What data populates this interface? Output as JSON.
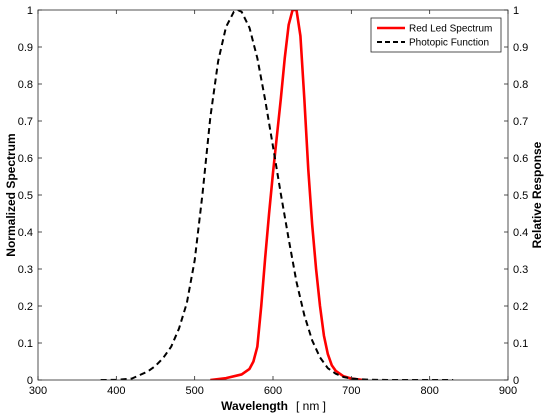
{
  "chart_data": {
    "type": "line",
    "xlabel": "Wavelength",
    "xunit": "[ nm ]",
    "ylabel_left": "Normalized Spectrum",
    "ylabel_right": "Relative Response",
    "xlim": [
      300,
      900
    ],
    "ylim": [
      0,
      1
    ],
    "ylim_right": [
      0,
      1
    ],
    "xticks": [
      "300",
      "400",
      "500",
      "600",
      "700",
      "800",
      "900"
    ],
    "yticks": [
      "0",
      "0.1",
      "0.2",
      "0.3",
      "0.4",
      "0.5",
      "0.6",
      "0.7",
      "0.8",
      "0.9",
      "1"
    ],
    "yticks_right": [
      "0",
      "0.1",
      "0.2",
      "0.3",
      "0.4",
      "0.5",
      "0.6",
      "0.7",
      "0.8",
      "0.9",
      "1"
    ],
    "grid": false,
    "legend_position": "top-right",
    "series": [
      {
        "name": "Red Led Spectrum",
        "color": "#ff0000",
        "style": "solid",
        "x": [
          520,
          540,
          560,
          570,
          575,
          580,
          585,
          590,
          595,
          600,
          605,
          610,
          615,
          620,
          625,
          630,
          635,
          640,
          645,
          650,
          655,
          660,
          665,
          670,
          675,
          680,
          690,
          700,
          715
        ],
        "y": [
          0,
          0.005,
          0.015,
          0.03,
          0.05,
          0.09,
          0.2,
          0.33,
          0.45,
          0.56,
          0.66,
          0.76,
          0.87,
          0.96,
          1.0,
          1.0,
          0.93,
          0.76,
          0.57,
          0.42,
          0.3,
          0.2,
          0.12,
          0.07,
          0.04,
          0.025,
          0.01,
          0.004,
          0
        ]
      },
      {
        "name": "Photopic Function",
        "color": "#000000",
        "style": "dashed",
        "x": [
          380,
          400,
          420,
          440,
          450,
          460,
          470,
          480,
          490,
          500,
          510,
          520,
          530,
          540,
          550,
          555,
          560,
          570,
          580,
          590,
          600,
          610,
          620,
          630,
          640,
          650,
          660,
          670,
          680,
          690,
          700,
          710,
          720,
          740,
          760,
          780,
          800,
          830
        ],
        "y": [
          0,
          0.0004,
          0.004,
          0.023,
          0.038,
          0.06,
          0.09,
          0.139,
          0.208,
          0.323,
          0.503,
          0.71,
          0.862,
          0.954,
          0.995,
          1.0,
          0.995,
          0.952,
          0.87,
          0.757,
          0.631,
          0.503,
          0.381,
          0.265,
          0.175,
          0.107,
          0.061,
          0.032,
          0.017,
          0.0082,
          0.0041,
          0.0021,
          0.001,
          0.0002,
          0,
          0,
          0,
          0
        ]
      }
    ]
  }
}
